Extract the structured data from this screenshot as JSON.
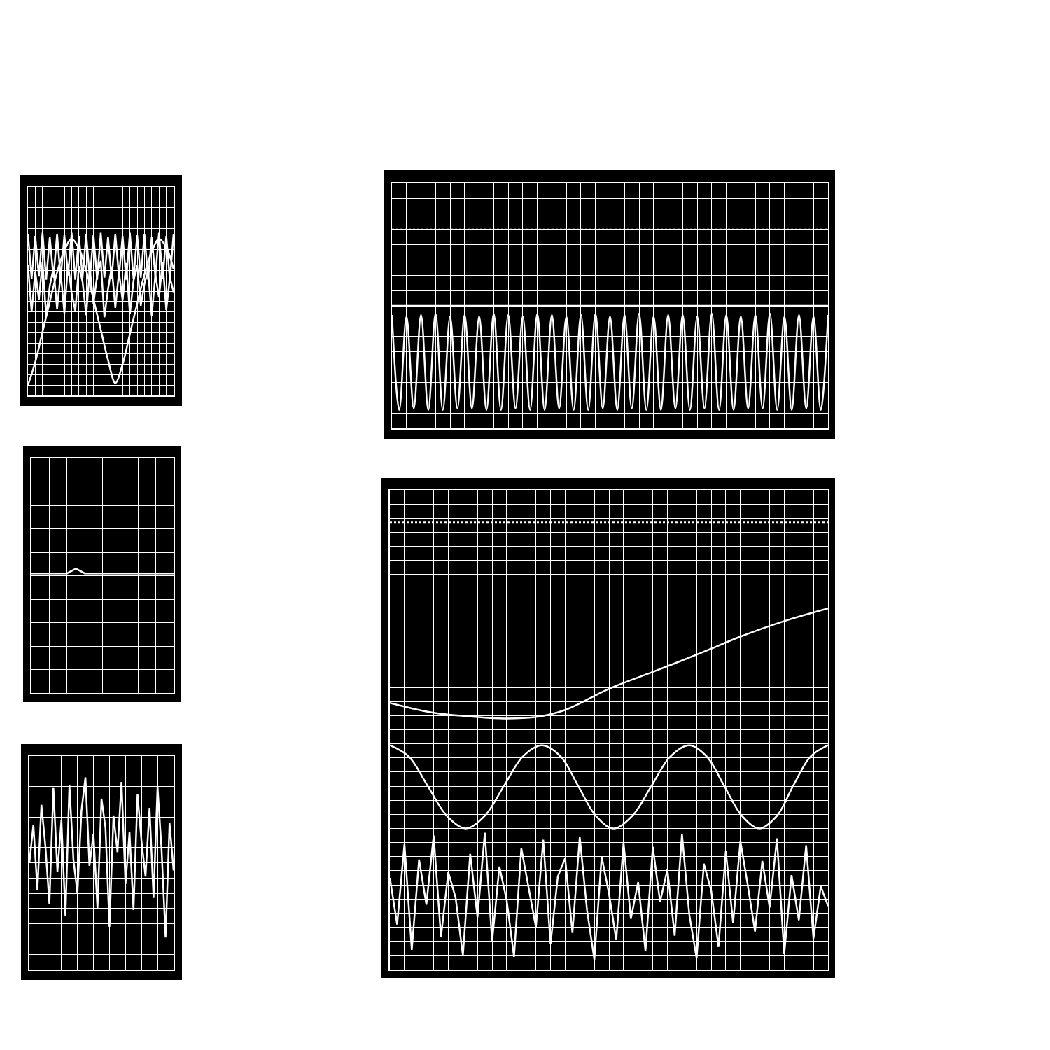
{
  "chart_data": [
    {
      "type": "line",
      "grid": true,
      "tick_labels": false,
      "xlim": [
        0,
        10
      ],
      "ylim": [
        0,
        20
      ],
      "xticks": [
        0,
        0.5,
        1,
        1.5,
        2,
        2.5,
        3,
        3.5,
        4,
        4.5,
        5,
        5.5,
        6,
        6.5,
        7,
        7.5,
        8,
        8.5,
        9,
        9.5,
        10
      ],
      "yticks": [
        0,
        1,
        2,
        3,
        4,
        5,
        6,
        7,
        8,
        9,
        10,
        11,
        12,
        13,
        14,
        15,
        16,
        17,
        18,
        19,
        20
      ],
      "series": [
        {
          "color": "#ffffff",
          "line_style": "solid",
          "x": [
            0,
            0.25,
            0.5,
            0.75,
            1,
            1.25,
            1.5,
            1.75,
            2,
            2.25,
            2.5,
            2.75,
            3,
            3.25,
            3.5,
            3.75,
            4,
            4.25,
            4.5,
            4.75,
            5,
            5.25,
            5.5,
            5.75,
            6,
            6.25,
            6.5,
            6.75,
            7,
            7.25,
            7.5,
            7.75,
            8,
            8.25,
            8.5,
            8.75,
            9,
            9.25,
            9.5,
            9.75,
            10
          ],
          "values": [
            15.5,
            11.2,
            15.3,
            11.4,
            15.6,
            11.1,
            15.2,
            11.3,
            15.5,
            11.2,
            15.4,
            11.5,
            15.6,
            11.1,
            15.3,
            11.3,
            15.5,
            11.2,
            15.4,
            11.1,
            15.6,
            11.3,
            15.2,
            11.2,
            15.5,
            11.4,
            15.3,
            11.1,
            15.6,
            11.2,
            15.4,
            11.3,
            15.5,
            11.1,
            15.2,
            11.4,
            15.6,
            11.2,
            15.3,
            11.1,
            15.5
          ]
        },
        {
          "color": "#ffffff",
          "line_style": "solid",
          "x": [
            0,
            0.25,
            0.5,
            0.75,
            1,
            1.25,
            1.5,
            1.75,
            2,
            2.25,
            2.5,
            2.75,
            3,
            3.25,
            3.5,
            3.75,
            4,
            4.25,
            4.5,
            4.75,
            5,
            5.25,
            5.5,
            5.75,
            6,
            6.25,
            6.5,
            6.75,
            7,
            7.25,
            7.5,
            7.75,
            8,
            8.25,
            8.5,
            8.75,
            9,
            9.25,
            9.5,
            9.75,
            10
          ],
          "values": [
            12.5,
            8.0,
            11.9,
            9.2,
            12.8,
            7.6,
            10.5,
            12.2,
            8.3,
            11.7,
            7.9,
            12.6,
            9.8,
            8.1,
            12.4,
            10.9,
            7.7,
            12.1,
            8.8,
            11.5,
            12.9,
            7.5,
            10.2,
            12.3,
            8.4,
            11.8,
            9.1,
            12.7,
            7.8,
            11.0,
            12.5,
            8.6,
            10.7,
            12.0,
            7.6,
            11.6,
            9.4,
            12.8,
            8.2,
            11.3,
            9.9
          ]
        },
        {
          "color": "#ffffff",
          "line_style": "smooth",
          "x": [
            0,
            0.5,
            1,
            1.5,
            2,
            2.5,
            3,
            3.5,
            4,
            4.5,
            5,
            5.5,
            6,
            6.5,
            7,
            7.5,
            8,
            8.5,
            9,
            9.5,
            10
          ],
          "values": [
            1.0,
            3.2,
            6.1,
            9.0,
            11.8,
            13.9,
            15.0,
            14.1,
            12.0,
            9.2,
            6.3,
            3.4,
            1.2,
            3.0,
            5.9,
            8.8,
            11.6,
            13.8,
            15.0,
            14.2,
            12.1
          ]
        }
      ]
    },
    {
      "type": "line",
      "grid": true,
      "tick_labels": false,
      "xlim": [
        0,
        8
      ],
      "ylim": [
        0,
        10
      ],
      "xticks": [
        0,
        1,
        2,
        3,
        4,
        5,
        6,
        7,
        8
      ],
      "yticks": [
        0,
        1,
        2,
        3,
        4,
        5,
        6,
        7,
        8,
        9,
        10
      ],
      "series": [
        {
          "color": "#ffffff",
          "line_style": "solid",
          "x": [
            0,
            1,
            2,
            2.5,
            3,
            4,
            5,
            6,
            7,
            8
          ],
          "values": [
            5.1,
            5.1,
            5.1,
            5.3,
            5.1,
            5.1,
            5.1,
            5.1,
            5.1,
            5.1
          ]
        }
      ]
    },
    {
      "type": "line",
      "grid": true,
      "tick_labels": false,
      "xlim": [
        0,
        9
      ],
      "ylim": [
        0,
        14
      ],
      "xticks": [
        0,
        1,
        2,
        3,
        4,
        5,
        6,
        7,
        8,
        9
      ],
      "yticks": [
        0,
        1,
        2,
        3,
        4,
        5,
        6,
        7,
        8,
        9,
        10,
        11,
        12,
        13,
        14
      ],
      "series": [
        {
          "color": "#ffffff",
          "line_style": "solid",
          "x": [
            0,
            0.25,
            0.5,
            0.75,
            1,
            1.25,
            1.5,
            1.75,
            2,
            2.25,
            2.5,
            2.75,
            3,
            3.25,
            3.5,
            3.75,
            4,
            4.25,
            4.5,
            4.75,
            5,
            5.25,
            5.5,
            5.75,
            6,
            6.25,
            6.5,
            6.75,
            7,
            7.25,
            7.5,
            7.75,
            8,
            8.25,
            8.5,
            8.75,
            9
          ],
          "values": [
            7.0,
            9.5,
            5.2,
            10.8,
            8.1,
            4.3,
            11.9,
            6.4,
            9.8,
            3.5,
            12.1,
            7.2,
            5.0,
            10.4,
            12.6,
            6.8,
            8.9,
            4.0,
            11.2,
            9.3,
            2.8,
            10.1,
            7.7,
            12.3,
            5.6,
            9.0,
            3.9,
            11.5,
            8.4,
            6.1,
            10.6,
            4.7,
            12.0,
            7.9,
            2.1,
            9.6,
            6.5
          ]
        }
      ]
    },
    {
      "type": "line",
      "grid": true,
      "tick_labels": false,
      "xlim": [
        0,
        30
      ],
      "ylim": [
        0,
        16
      ],
      "xticks": [
        0,
        1,
        2,
        3,
        4,
        5,
        6,
        7,
        8,
        9,
        10,
        11,
        12,
        13,
        14,
        15,
        16,
        17,
        18,
        19,
        20,
        21,
        22,
        23,
        24,
        25,
        26,
        27,
        28,
        29,
        30
      ],
      "yticks": [
        0,
        1,
        2,
        3,
        4,
        5,
        6,
        7,
        8,
        9,
        10,
        11,
        12,
        13,
        14,
        15,
        16
      ],
      "series": [
        {
          "color": "#ffffff",
          "line_style": "dotted",
          "x": [
            0,
            30
          ],
          "values": [
            13.0,
            13.0
          ]
        },
        {
          "color": "#ffffff",
          "line_style": "solid",
          "x": [
            0,
            30
          ],
          "values": [
            8.0,
            8.0
          ]
        },
        {
          "color": "#ffffff",
          "line_style": "smooth",
          "x": [
            0,
            0.5,
            1,
            1.5,
            2,
            2.5,
            3,
            3.5,
            4,
            4.5,
            5,
            5.5,
            6,
            6.5,
            7,
            7.5,
            8,
            8.5,
            9,
            9.5,
            10,
            10.5,
            11,
            11.5,
            12,
            12.5,
            13,
            13.5,
            14,
            14.5,
            15,
            15.5,
            16,
            16.5,
            17,
            17.5,
            18,
            18.5,
            19,
            19.5,
            20,
            20.5,
            21,
            21.5,
            22,
            22.5,
            23,
            23.5,
            24,
            24.5,
            25,
            25.5,
            26,
            26.5,
            27,
            27.5,
            28,
            28.5,
            29,
            29.5,
            30
          ],
          "values": [
            7.4,
            1.2,
            7.3,
            1.3,
            7.4,
            1.2,
            7.5,
            1.2,
            7.3,
            1.3,
            7.4,
            1.3,
            7.3,
            1.2,
            7.5,
            1.2,
            7.4,
            1.3,
            7.3,
            1.2,
            7.5,
            1.2,
            7.4,
            1.3,
            7.3,
            1.2,
            7.4,
            1.2,
            7.5,
            1.3,
            7.3,
            1.2,
            7.4,
            1.3,
            7.5,
            1.2,
            7.3,
            1.2,
            7.4,
            1.3,
            7.4,
            1.2,
            7.3,
            1.3,
            7.5,
            1.2,
            7.4,
            1.2,
            7.3,
            1.3,
            7.4,
            1.3,
            7.5,
            1.2,
            7.3,
            1.2,
            7.4,
            1.3,
            7.3,
            1.2,
            7.4
          ]
        }
      ]
    },
    {
      "type": "line",
      "grid": true,
      "tick_labels": false,
      "xlim": [
        0,
        30
      ],
      "ylim": [
        0,
        34
      ],
      "xticks": [
        0,
        1,
        2,
        3,
        4,
        5,
        6,
        7,
        8,
        9,
        10,
        11,
        12,
        13,
        14,
        15,
        16,
        17,
        18,
        19,
        20,
        21,
        22,
        23,
        24,
        25,
        26,
        27,
        28,
        29,
        30
      ],
      "yticks": [
        0,
        1,
        2,
        3,
        4,
        5,
        6,
        7,
        8,
        9,
        10,
        11,
        12,
        13,
        14,
        15,
        16,
        17,
        18,
        19,
        20,
        21,
        22,
        23,
        24,
        25,
        26,
        27,
        28,
        29,
        30,
        31,
        32,
        33,
        34
      ],
      "series": [
        {
          "color": "#ffffff",
          "line_style": "dotted",
          "x": [
            0,
            30
          ],
          "values": [
            31.7,
            31.7
          ]
        },
        {
          "color": "#ffffff",
          "line_style": "smooth",
          "x": [
            0,
            3,
            6,
            7.8,
            10,
            12,
            15,
            18,
            21.2,
            24,
            27,
            30
          ],
          "values": [
            18.9,
            18.2,
            17.9,
            17.8,
            17.9,
            18.4,
            19.9,
            21.1,
            22.4,
            23.6,
            24.7,
            25.6
          ]
        },
        {
          "color": "#ffffff",
          "line_style": "smooth",
          "x": [
            0,
            1.3,
            2.6,
            3.9,
            5.2,
            6.5,
            7.8,
            9.1,
            10.4,
            11.7,
            12.9,
            14.1,
            15.3,
            16.6,
            17.9,
            19.2,
            20.5,
            21.7,
            22.9,
            24.1,
            25.3,
            26.5,
            27.6,
            28.8,
            30
          ],
          "values": [
            15.9,
            15.1,
            13.0,
            10.9,
            10.0,
            10.9,
            13.0,
            15.1,
            15.9,
            15.1,
            13.0,
            10.9,
            10.0,
            10.9,
            13.0,
            15.1,
            15.9,
            15.1,
            13.0,
            10.9,
            10.0,
            10.9,
            13.0,
            15.1,
            15.9
          ]
        },
        {
          "color": "#ffffff",
          "line_style": "solid",
          "x": [
            0,
            0.5,
            1,
            1.5,
            2,
            2.5,
            3,
            3.5,
            4,
            4.5,
            5,
            5.5,
            6,
            6.5,
            7,
            7.5,
            8,
            8.5,
            9,
            9.5,
            10,
            10.5,
            11,
            11.5,
            12,
            12.5,
            13,
            13.5,
            14,
            14.5,
            15,
            15.5,
            16,
            16.5,
            17,
            17.5,
            18,
            18.5,
            19,
            19.5,
            20,
            20.5,
            21,
            21.5,
            22,
            22.5,
            23,
            23.5,
            24,
            24.5,
            25,
            25.5,
            26,
            26.5,
            27,
            27.5,
            28,
            28.5,
            29,
            29.5,
            30
          ],
          "values": [
            6.5,
            3.2,
            8.9,
            1.4,
            7.8,
            4.6,
            9.5,
            2.3,
            6.9,
            5.1,
            1.0,
            8.2,
            3.7,
            9.7,
            2.0,
            7.3,
            4.9,
            0.9,
            8.6,
            5.8,
            3.0,
            9.2,
            1.8,
            6.6,
            7.9,
            2.6,
            9.4,
            4.2,
            0.7,
            8.0,
            5.4,
            2.1,
            9.0,
            3.6,
            6.2,
            1.3,
            8.7,
            4.8,
            7.1,
            2.4,
            9.6,
            3.9,
            0.8,
            7.5,
            5.6,
            1.6,
            8.4,
            3.3,
            9.1,
            6.0,
            2.7,
            7.7,
            4.4,
            9.3,
            1.1,
            6.7,
            3.5,
            8.8,
            2.2,
            5.9,
            4.5
          ]
        }
      ]
    }
  ]
}
